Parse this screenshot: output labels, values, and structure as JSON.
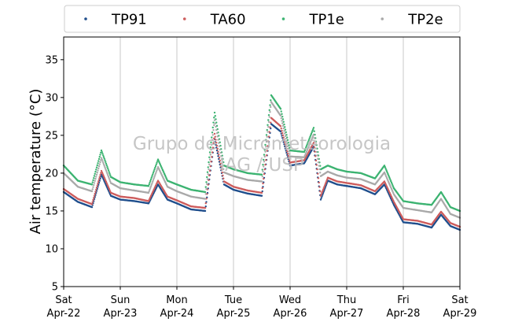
{
  "chart_data": {
    "type": "scatter",
    "title": "",
    "xlabel": "",
    "ylabel": "Air temperature (°C)",
    "ylim": [
      5,
      38
    ],
    "yticks": [
      5,
      10,
      15,
      20,
      25,
      30,
      35
    ],
    "xlim": [
      "2023-04-22",
      "2023-04-29"
    ],
    "xticks": [
      {
        "date": "2023-04-22",
        "weekday": "Sat",
        "day": "Apr-22"
      },
      {
        "date": "2023-04-23",
        "weekday": "Sun",
        "day": "Apr-23"
      },
      {
        "date": "2023-04-24",
        "weekday": "Mon",
        "day": "Apr-24"
      },
      {
        "date": "2023-04-25",
        "weekday": "Tue",
        "day": "Apr-25"
      },
      {
        "date": "2023-04-26",
        "weekday": "Wed",
        "day": "Apr-26"
      },
      {
        "date": "2023-04-27",
        "weekday": "Thu",
        "day": "Apr-27"
      },
      {
        "date": "2023-04-28",
        "weekday": "Fri",
        "day": "Apr-28"
      },
      {
        "date": "2023-04-29",
        "weekday": "Sat",
        "day": "Apr-29"
      }
    ],
    "grid": "vertical",
    "legend_position": "top",
    "x": [
      "2023-04-22 00:00",
      "2023-04-22 06:00",
      "2023-04-22 12:00",
      "2023-04-22 16:00",
      "2023-04-22 20:00",
      "2023-04-23 00:00",
      "2023-04-23 06:00",
      "2023-04-23 12:00",
      "2023-04-23 16:00",
      "2023-04-23 20:00",
      "2023-04-24 00:00",
      "2023-04-24 06:00",
      "2023-04-24 12:00",
      "2023-04-24 16:00",
      "2023-04-24 20:00",
      "2023-04-25 00:00",
      "2023-04-25 06:00",
      "2023-04-25 12:00",
      "2023-04-25 16:00",
      "2023-04-25 20:00",
      "2023-04-26 00:00",
      "2023-04-26 06:00",
      "2023-04-26 10:00",
      "2023-04-26 13:00",
      "2023-04-26 16:00",
      "2023-04-26 20:00",
      "2023-04-27 00:00",
      "2023-04-27 06:00",
      "2023-04-27 12:00",
      "2023-04-27 16:00",
      "2023-04-27 20:00",
      "2023-04-28 00:00",
      "2023-04-28 06:00",
      "2023-04-28 12:00",
      "2023-04-28 16:00",
      "2023-04-28 20:00",
      "2023-04-29 00:00"
    ],
    "series": [
      {
        "name": "TP91",
        "color": "#1f4e8c",
        "values": [
          17.5,
          16.2,
          15.5,
          19.8,
          17.0,
          16.5,
          16.3,
          16.0,
          18.5,
          16.5,
          16.0,
          15.2,
          15.0,
          24.5,
          18.5,
          17.8,
          17.3,
          17.0,
          26.5,
          25.5,
          21.0,
          21.3,
          23.5,
          16.5,
          19.0,
          18.5,
          18.3,
          18.0,
          17.2,
          18.5,
          15.8,
          13.5,
          13.3,
          12.8,
          14.5,
          13.0,
          12.5
        ]
      },
      {
        "name": "TA60",
        "color": "#cd5c5c",
        "values": [
          17.9,
          16.6,
          15.9,
          20.3,
          17.4,
          16.9,
          16.7,
          16.3,
          19.0,
          16.9,
          16.4,
          15.6,
          15.4,
          25.2,
          18.9,
          18.2,
          17.7,
          17.4,
          27.3,
          26.2,
          21.4,
          21.7,
          24.0,
          17.0,
          19.4,
          18.9,
          18.7,
          18.4,
          17.6,
          18.9,
          16.2,
          13.9,
          13.7,
          13.2,
          14.9,
          13.4,
          12.9
        ]
      },
      {
        "name": "TP1e",
        "color": "#3cb371",
        "values": [
          21.0,
          19.0,
          18.5,
          23.0,
          19.5,
          18.8,
          18.5,
          18.3,
          21.8,
          19.0,
          18.5,
          17.8,
          17.5,
          28.0,
          21.0,
          20.5,
          20.0,
          19.8,
          30.3,
          28.5,
          23.0,
          22.8,
          26.0,
          20.5,
          21.0,
          20.5,
          20.2,
          20.0,
          19.3,
          21.0,
          18.0,
          16.3,
          16.0,
          15.8,
          17.5,
          15.5,
          15.0
        ]
      },
      {
        "name": "TP2e",
        "color": "#a9a9a9",
        "values": [
          20.0,
          18.2,
          17.6,
          22.0,
          18.7,
          18.0,
          17.7,
          17.4,
          20.8,
          18.2,
          17.6,
          16.9,
          16.6,
          27.0,
          20.1,
          19.6,
          19.1,
          18.9,
          29.4,
          27.6,
          22.2,
          22.1,
          25.1,
          19.6,
          20.2,
          19.7,
          19.4,
          19.2,
          18.5,
          20.1,
          17.2,
          15.4,
          15.1,
          14.8,
          16.6,
          14.6,
          14.1
        ]
      }
    ],
    "watermark": [
      "Grupo de Micrometeorologia",
      "IAG / USP"
    ]
  }
}
